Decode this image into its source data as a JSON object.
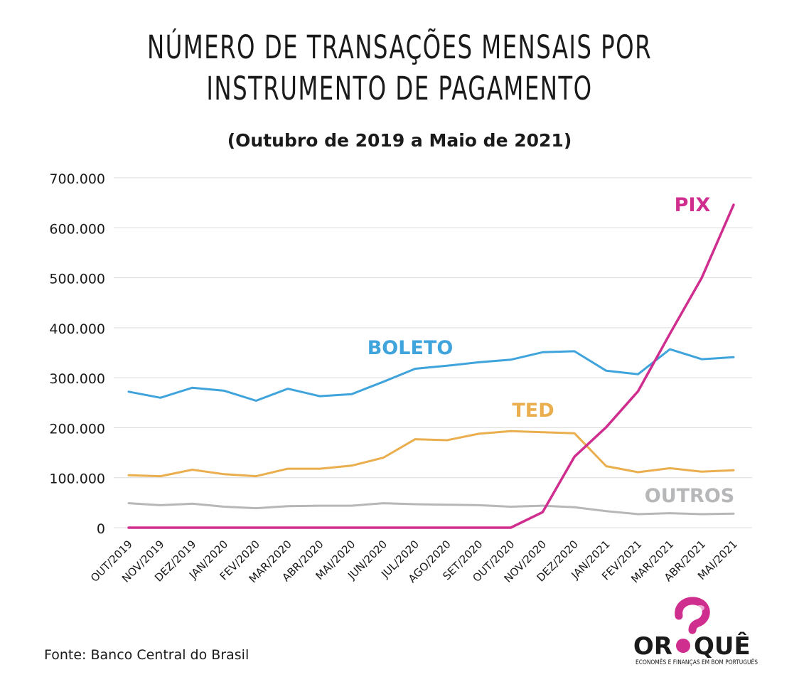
{
  "title_lines": [
    "NÚMERO DE TRANSAÇÕES MENSAIS POR",
    "INSTRUMENTO DE PAGAMENTO"
  ],
  "subtitle": "(Outubro de 2019 a Maio de 2021)",
  "source": "Fonte: Banco Central do Brasil",
  "logo": {
    "text_left": "POR",
    "text_right": "QUÊ",
    "tagline": "ECONOMÊS E FINANÇAS EM BOM PORTUGUÊS"
  },
  "colors": {
    "boleto": "#3fa3dc",
    "ted": "#eaae4e",
    "outros": "#b5b7b9",
    "pix": "#cf2e8f",
    "grid": "#dcdcdc",
    "text": "#1a1a1a"
  },
  "chart_data": {
    "type": "line",
    "categories": [
      "OUT/2019",
      "NOV/2019",
      "DEZ/2019",
      "JAN/2020",
      "FEV/2020",
      "MAR/2020",
      "ABR/2020",
      "MAI/2020",
      "JUN/2020",
      "JUL/2020",
      "AGO/2020",
      "SET/2020",
      "OUT/2020",
      "NOV/2020",
      "DEZ/2020",
      "JAN/2021",
      "FEV/2021",
      "MAR/2021",
      "ABR/2021",
      "MAI/2021"
    ],
    "ylim": [
      0,
      700000
    ],
    "yticks": [
      0,
      100000,
      200000,
      300000,
      400000,
      500000,
      600000,
      700000
    ],
    "ytick_labels": [
      "0",
      "100.000",
      "200.000",
      "300.000",
      "400.000",
      "500.000",
      "600.000",
      "700.000"
    ],
    "grid": true,
    "series": [
      {
        "key": "boleto",
        "name": "BOLETO",
        "values": [
          272000,
          260000,
          280000,
          274000,
          254000,
          278000,
          263000,
          267000,
          292000,
          318000,
          324000,
          331000,
          336000,
          351000,
          353000,
          314000,
          307000,
          357000,
          337000,
          341000
        ]
      },
      {
        "key": "ted",
        "name": "TED",
        "values": [
          105000,
          103000,
          116000,
          107000,
          103000,
          118000,
          118000,
          124000,
          140000,
          177000,
          175000,
          188000,
          193000,
          191000,
          189000,
          123000,
          111000,
          119000,
          112000,
          115000
        ]
      },
      {
        "key": "outros",
        "name": "OUTROS",
        "values": [
          49000,
          45000,
          48000,
          42000,
          39000,
          43000,
          44000,
          44000,
          49000,
          47000,
          46000,
          45000,
          42000,
          44000,
          41000,
          33000,
          27000,
          29000,
          27000,
          28000
        ]
      },
      {
        "key": "pix",
        "name": "PIX",
        "values": [
          0,
          0,
          0,
          0,
          0,
          0,
          0,
          0,
          0,
          0,
          0,
          0,
          0,
          31000,
          142000,
          201000,
          273000,
          388000,
          500000,
          646000
        ]
      }
    ]
  }
}
